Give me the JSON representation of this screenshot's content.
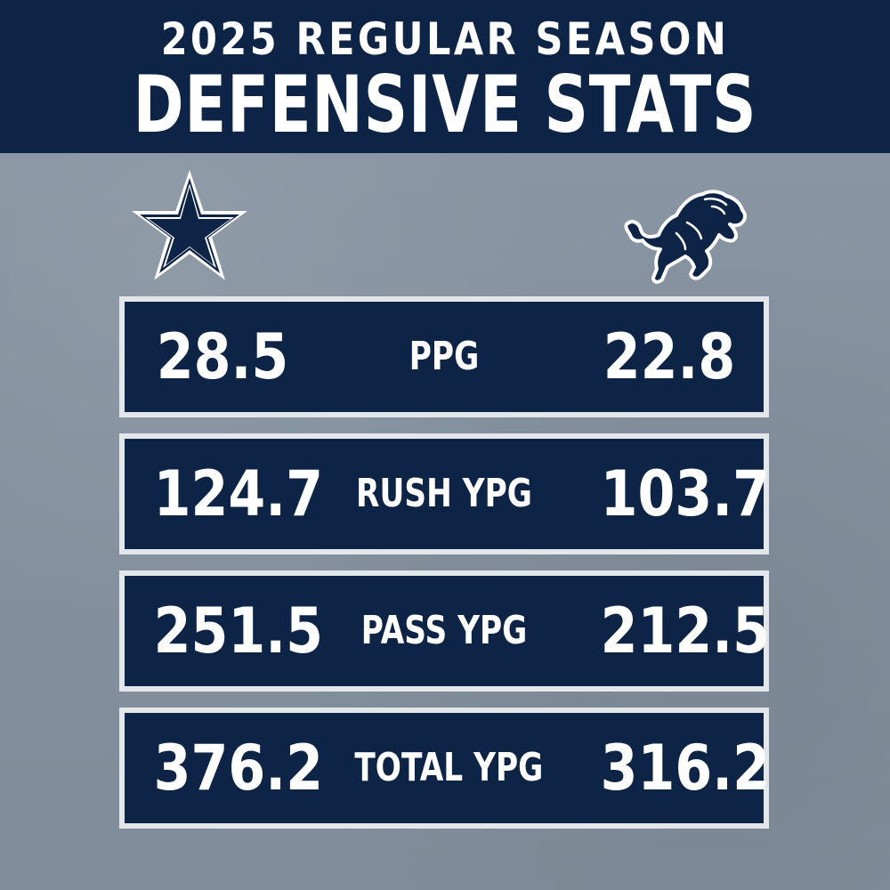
{
  "header": {
    "subtitle": "2025 REGULAR SEASON",
    "title": "DEFENSIVE STATS"
  },
  "teams": {
    "left_logo_icon": "dallas-cowboys-star-icon",
    "right_logo_icon": "detroit-lions-lion-icon"
  },
  "colors": {
    "navy": "#0e2447",
    "background_gray": "#8793a0",
    "border_light": "#e3e6ea",
    "text": "#ffffff"
  },
  "stats": [
    {
      "label": "PPG",
      "left": "28.5",
      "right": "22.8"
    },
    {
      "label": "RUSH YPG",
      "left": "124.7",
      "right": "103.7"
    },
    {
      "label": "PASS YPG",
      "left": "251.5",
      "right": "212.5"
    },
    {
      "label": "TOTAL YPG",
      "left": "376.2",
      "right": "316.2"
    }
  ]
}
